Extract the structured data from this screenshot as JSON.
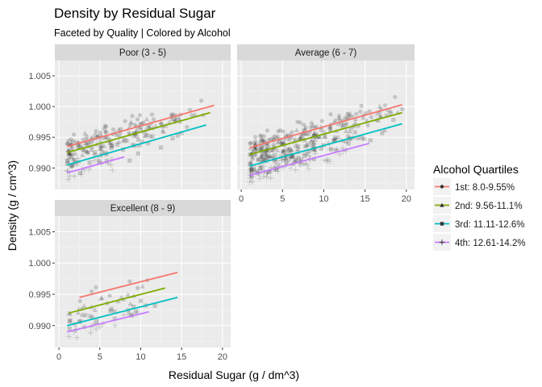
{
  "chart_data": {
    "type": "scatter",
    "title": "Density by Residual Sugar",
    "subtitle": "Faceted by Quality | Colored by Alcohol",
    "xlabel": "Residual Sugar (g / dm^3)",
    "ylabel": "Density (g / cm^3)",
    "xlim": [
      -0.5,
      21
    ],
    "ylim": [
      0.9865,
      1.0075
    ],
    "x_ticks": [
      0,
      5,
      10,
      15,
      20
    ],
    "y_ticks": [
      0.99,
      0.995,
      1.0,
      1.005
    ],
    "x_tick_labels": [
      "0",
      "5",
      "10",
      "15",
      "20"
    ],
    "y_tick_labels": [
      "0.990",
      "0.995",
      "1.000",
      "1.005"
    ],
    "grid": true,
    "legend": {
      "title": "Alcohol Quartiles",
      "placement": "right",
      "entries": [
        {
          "label": "1st: 8.0-9.55%",
          "color": "#F8766D",
          "shape": "circle"
        },
        {
          "label": "2nd: 9.56-11.1%",
          "color": "#7CAE00",
          "shape": "triangle"
        },
        {
          "label": "3rd: 11.11-12.6%",
          "color": "#00BFC4",
          "shape": "square"
        },
        {
          "label": "4th: 12.61-14.2%",
          "color": "#C77CFF",
          "shape": "cross"
        }
      ]
    },
    "panels": [
      {
        "name": "Poor (3 - 5)",
        "show_x_axis": false,
        "show_y_axis": true,
        "trend_lines": [
          {
            "series": "1st: 8.0-9.55%",
            "x": [
              1.0,
              19.0
            ],
            "y": [
              0.9935,
              1.0002
            ]
          },
          {
            "series": "2nd: 9.56-11.1%",
            "x": [
              1.0,
              18.5
            ],
            "y": [
              0.9925,
              0.999
            ]
          },
          {
            "series": "3rd: 11.11-12.6%",
            "x": [
              1.0,
              18.0
            ],
            "y": [
              0.9905,
              0.997
            ]
          },
          {
            "series": "4th: 12.61-14.2%",
            "x": [
              1.0,
              8.0
            ],
            "y": [
              0.9892,
              0.9918
            ]
          }
        ],
        "point_clouds": [
          {
            "series": "1st: 8.0-9.55%",
            "x_range": [
              1.0,
              19.0
            ],
            "y_at_x": [
              0.9935,
              1.0002
            ],
            "spread": 0.0016,
            "count": 80
          },
          {
            "series": "2nd: 9.56-11.1%",
            "x_range": [
              1.0,
              18.5
            ],
            "y_at_x": [
              0.9925,
              0.999
            ],
            "spread": 0.0016,
            "count": 70
          },
          {
            "series": "3rd: 11.11-12.6%",
            "x_range": [
              1.0,
              18.0
            ],
            "y_at_x": [
              0.9905,
              0.997
            ],
            "spread": 0.0015,
            "count": 45
          },
          {
            "series": "4th: 12.61-14.2%",
            "x_range": [
              1.0,
              8.0
            ],
            "y_at_x": [
              0.9892,
              0.9918
            ],
            "spread": 0.0012,
            "count": 20
          }
        ]
      },
      {
        "name": "Average (6 - 7)",
        "show_x_axis": true,
        "show_y_axis": false,
        "trend_lines": [
          {
            "series": "1st: 8.0-9.55%",
            "x": [
              1.0,
              19.5
            ],
            "y": [
              0.9933,
              1.0003
            ]
          },
          {
            "series": "2nd: 9.56-11.1%",
            "x": [
              1.0,
              19.5
            ],
            "y": [
              0.9922,
              0.999
            ]
          },
          {
            "series": "3rd: 11.11-12.6%",
            "x": [
              1.0,
              19.5
            ],
            "y": [
              0.9903,
              0.9972
            ]
          },
          {
            "series": "4th: 12.61-14.2%",
            "x": [
              1.0,
              15.5
            ],
            "y": [
              0.9888,
              0.994
            ]
          }
        ],
        "point_clouds": [
          {
            "series": "1st: 8.0-9.55%",
            "x_range": [
              1.0,
              19.5
            ],
            "y_at_x": [
              0.9933,
              1.0003
            ],
            "spread": 0.0016,
            "count": 110
          },
          {
            "series": "2nd: 9.56-11.1%",
            "x_range": [
              1.0,
              19.5
            ],
            "y_at_x": [
              0.9922,
              0.999
            ],
            "spread": 0.0016,
            "count": 110
          },
          {
            "series": "3rd: 11.11-12.6%",
            "x_range": [
              1.0,
              19.5
            ],
            "y_at_x": [
              0.9903,
              0.9972
            ],
            "spread": 0.0015,
            "count": 80
          },
          {
            "series": "4th: 12.61-14.2%",
            "x_range": [
              1.0,
              15.5
            ],
            "y_at_x": [
              0.9888,
              0.994
            ],
            "spread": 0.0013,
            "count": 70
          }
        ]
      },
      {
        "name": "Excellent (8 - 9)",
        "show_x_axis": true,
        "show_y_axis": true,
        "trend_lines": [
          {
            "series": "1st: 8.0-9.55%",
            "x": [
              2.5,
              14.5
            ],
            "y": [
              0.9945,
              0.9985
            ]
          },
          {
            "series": "2nd: 9.56-11.1%",
            "x": [
              1.2,
              13.0
            ],
            "y": [
              0.992,
              0.996
            ]
          },
          {
            "series": "3rd: 11.11-12.6%",
            "x": [
              1.0,
              14.5
            ],
            "y": [
              0.99,
              0.9945
            ]
          },
          {
            "series": "4th: 12.61-14.2%",
            "x": [
              1.0,
              11.0
            ],
            "y": [
              0.989,
              0.9922
            ]
          }
        ],
        "point_clouds": [
          {
            "series": "1st: 8.0-9.55%",
            "x_range": [
              2.5,
              14.5
            ],
            "y_at_x": [
              0.9945,
              0.9985
            ],
            "spread": 0.0014,
            "count": 8
          },
          {
            "series": "2nd: 9.56-11.1%",
            "x_range": [
              1.2,
              13.0
            ],
            "y_at_x": [
              0.992,
              0.996
            ],
            "spread": 0.0012,
            "count": 18
          },
          {
            "series": "3rd: 11.11-12.6%",
            "x_range": [
              1.0,
              14.5
            ],
            "y_at_x": [
              0.99,
              0.9945
            ],
            "spread": 0.0011,
            "count": 22
          },
          {
            "series": "4th: 12.61-14.2%",
            "x_range": [
              1.0,
              11.0
            ],
            "y_at_x": [
              0.989,
              0.9922
            ],
            "spread": 0.001,
            "count": 18
          }
        ]
      }
    ]
  }
}
